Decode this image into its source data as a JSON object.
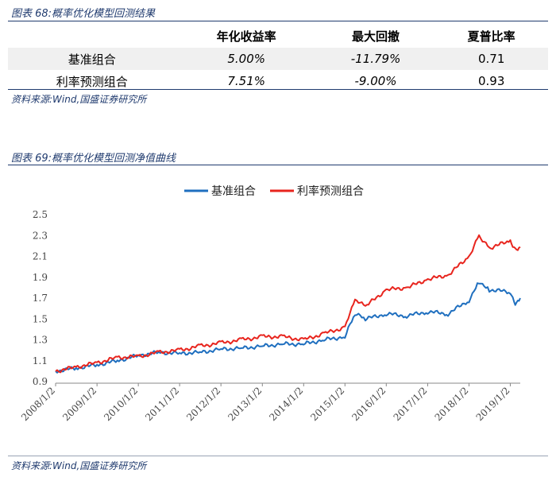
{
  "table_section": {
    "title": "图表 68:概率优化模型回测结果",
    "headers": [
      "",
      "年化收益率",
      "最大回撤",
      "夏普比率"
    ],
    "rows": [
      {
        "name": "基准组合",
        "annual_return": "5.00%",
        "max_drawdown": "-11.79%",
        "sharpe": "0.71"
      },
      {
        "name": "利率预测组合",
        "annual_return": "7.51%",
        "max_drawdown": "-9.00%",
        "sharpe": "0.93"
      }
    ],
    "source": "资料来源:Wind,国盛证券研究所"
  },
  "chart_section": {
    "title": "图表 69:概率优化模型回测净值曲线",
    "source": "资料来源:Wind,国盛证券研究所"
  },
  "colors": {
    "benchmark": "#1f6fbf",
    "forecast": "#e8251e"
  },
  "chart_data": {
    "type": "line",
    "title": "",
    "xlabel": "",
    "ylabel": "",
    "x_ticks": [
      "2008/1/2",
      "2009/1/2",
      "2010/1/2",
      "2011/1/2",
      "2012/1/2",
      "2013/1/2",
      "2014/1/2",
      "2015/1/2",
      "2016/1/2",
      "2017/1/2",
      "2018/1/2",
      "2019/1/2"
    ],
    "y_ticks": [
      "0.9",
      "1.1",
      "1.3",
      "1.5",
      "1.7",
      "1.9",
      "2.1",
      "2.3",
      "2.5"
    ],
    "ylim": [
      0.9,
      2.5
    ],
    "xlim": [
      "2008/1/2",
      "2019/3/31"
    ],
    "legend_position": "top-center",
    "grid": false,
    "series": [
      {
        "name": "基准组合",
        "x": [
          "2008/1/2",
          "2008/7/1",
          "2009/1/2",
          "2009/7/1",
          "2010/1/2",
          "2010/7/1",
          "2011/1/2",
          "2011/7/1",
          "2012/1/2",
          "2012/7/1",
          "2013/1/2",
          "2013/7/1",
          "2014/1/2",
          "2014/7/1",
          "2015/1/2",
          "2015/4/1",
          "2015/7/1",
          "2016/1/2",
          "2016/7/1",
          "2017/1/2",
          "2017/7/1",
          "2018/1/2",
          "2018/4/1",
          "2018/7/1",
          "2019/1/2",
          "2019/2/15",
          "2019/3/31"
        ],
        "values": [
          1.0,
          1.03,
          1.06,
          1.1,
          1.15,
          1.18,
          1.17,
          1.18,
          1.21,
          1.22,
          1.24,
          1.26,
          1.26,
          1.3,
          1.33,
          1.55,
          1.5,
          1.55,
          1.53,
          1.57,
          1.55,
          1.68,
          1.86,
          1.78,
          1.76,
          1.65,
          1.7
        ]
      },
      {
        "name": "利率预测组合",
        "x": [
          "2008/1/2",
          "2008/7/1",
          "2009/1/2",
          "2009/7/1",
          "2010/1/2",
          "2010/7/1",
          "2011/1/2",
          "2011/7/1",
          "2012/1/2",
          "2012/7/1",
          "2013/1/2",
          "2013/7/1",
          "2014/1/2",
          "2014/7/1",
          "2015/1/2",
          "2015/4/1",
          "2015/7/1",
          "2016/1/2",
          "2016/7/1",
          "2017/1/2",
          "2017/7/1",
          "2018/1/2",
          "2018/4/1",
          "2018/7/1",
          "2019/1/2",
          "2019/2/15",
          "2019/3/31"
        ],
        "values": [
          1.0,
          1.04,
          1.08,
          1.13,
          1.14,
          1.18,
          1.2,
          1.24,
          1.27,
          1.3,
          1.33,
          1.33,
          1.3,
          1.36,
          1.42,
          1.68,
          1.62,
          1.78,
          1.8,
          1.88,
          1.92,
          2.1,
          2.3,
          2.18,
          2.25,
          2.17,
          2.19
        ]
      }
    ]
  }
}
